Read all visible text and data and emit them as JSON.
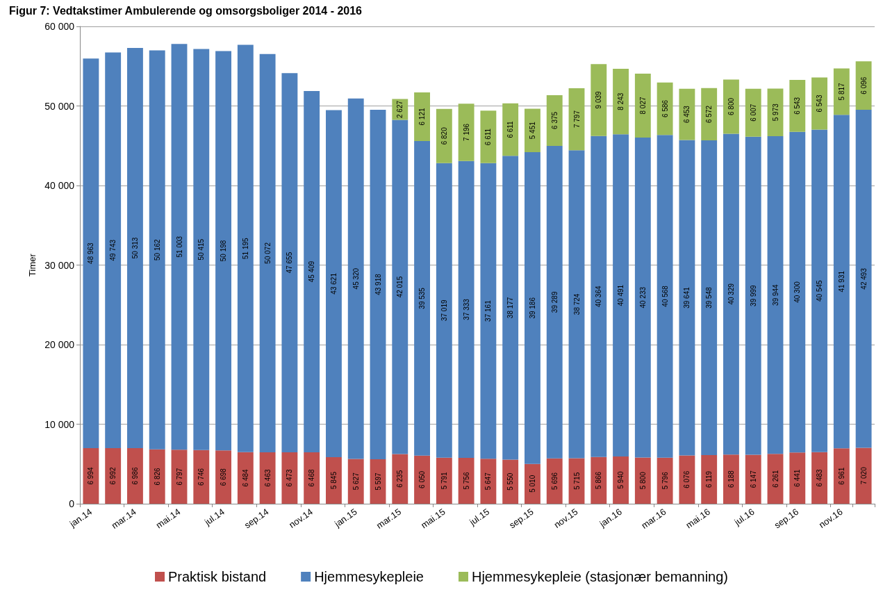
{
  "chart_data": {
    "type": "bar",
    "title": "Figur 7: Vedtakstimer Ambulerende og omsorgsboliger 2014 - 2016",
    "ylabel": "Timer",
    "stacked": true,
    "data_labels": true,
    "grid": "y",
    "legend": "bottom",
    "categories": [
      "jan.14",
      null,
      "mar.14",
      null,
      "mai.14",
      null,
      "jul.14",
      null,
      "sep.14",
      null,
      "nov.14",
      null,
      "jan.15",
      null,
      "mar.15",
      null,
      "mai.15",
      null,
      "jul.15",
      null,
      "sep.15",
      null,
      "nov.15",
      null,
      "jan.16",
      null,
      "mar.16",
      null,
      "mai.16",
      null,
      "jul.16",
      null,
      "sep.16",
      null,
      "nov.16",
      null
    ],
    "ylim": [
      0,
      60000
    ],
    "yticks": [
      {
        "value": 0,
        "label": "0"
      },
      {
        "value": 10000,
        "label": "10 000"
      },
      {
        "value": 20000,
        "label": "20 000"
      },
      {
        "value": 30000,
        "label": "30 000"
      },
      {
        "value": 40000,
        "label": "40 000"
      },
      {
        "value": 50000,
        "label": "50 000"
      },
      {
        "value": 60000,
        "label": "60 000"
      }
    ],
    "series": [
      {
        "name": "Praktisk bistand",
        "color": "#c0504d",
        "values": [
          6994,
          6992,
          6986,
          6826,
          6797,
          6746,
          6698,
          6484,
          6463,
          6473,
          6468,
          5845,
          5627,
          5597,
          6235,
          6050,
          5791,
          5756,
          5647,
          5550,
          5010,
          5696,
          5715,
          5866,
          5940,
          5800,
          5796,
          6076,
          6119,
          6188,
          6147,
          6261,
          6441,
          6483,
          6961,
          7020
        ]
      },
      {
        "name": "Hjemmesykepleie",
        "color": "#4f81bd",
        "values": [
          48963,
          49743,
          50313,
          50162,
          51003,
          50415,
          50198,
          51195,
          50072,
          47655,
          45409,
          43621,
          45320,
          43918,
          42015,
          39535,
          37019,
          37333,
          37161,
          38177,
          39186,
          39289,
          38724,
          40364,
          40491,
          40233,
          40568,
          39641,
          39548,
          40329,
          39999,
          39944,
          40300,
          40545,
          41931,
          42493
        ]
      },
      {
        "name": "Hjemmesykepleie (stasjonær bemanning)",
        "color": "#9bbb59",
        "values": [
          null,
          null,
          null,
          null,
          null,
          null,
          null,
          null,
          null,
          null,
          null,
          null,
          null,
          null,
          2627,
          6121,
          6820,
          7196,
          6611,
          6611,
          5451,
          6375,
          7797,
          9039,
          8243,
          8027,
          6586,
          6453,
          6572,
          6800,
          6007,
          5973,
          6543,
          6543,
          5817,
          6096
        ]
      }
    ]
  }
}
